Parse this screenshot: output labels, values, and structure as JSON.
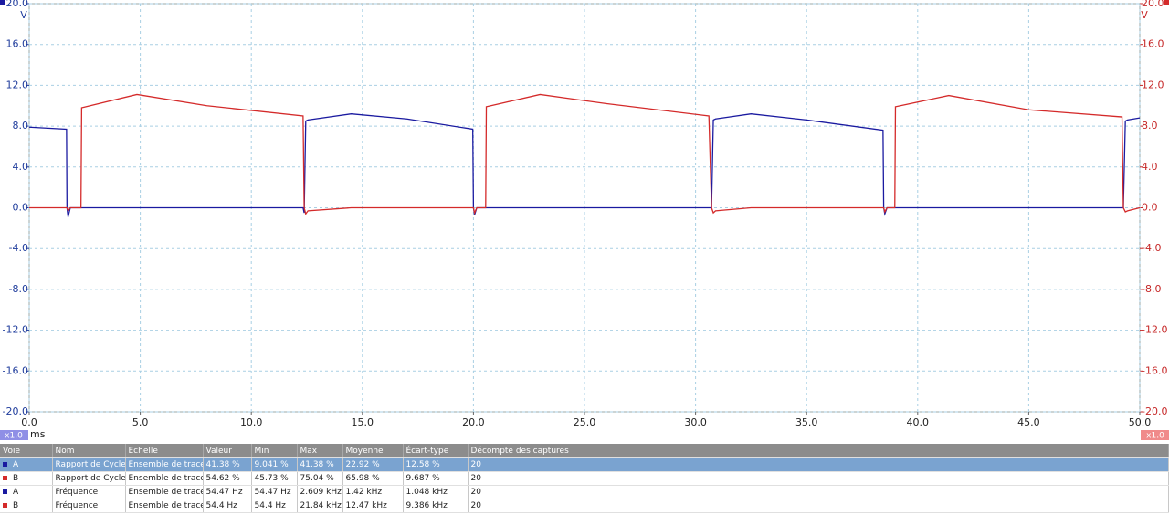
{
  "chart_data": {
    "type": "line",
    "x_label": "ms",
    "y_label": "V",
    "y2_label": "V",
    "zoom_labels": [
      "x1.0",
      "x1.0"
    ],
    "x": [
      0,
      1.68,
      1.7,
      1.75,
      1.85,
      2.33,
      2.36,
      4.85,
      8.0,
      12.33,
      12.38,
      12.45,
      12.55,
      14.5,
      17.0,
      19.97,
      20.0,
      20.05,
      20.15,
      20.55,
      20.58,
      23,
      26,
      30.6,
      30.72,
      30.8,
      30.9,
      32.5,
      35,
      38.44,
      38.47,
      38.52,
      38.62,
      38.97,
      39,
      41.4,
      45,
      49.2,
      49.26,
      49.35,
      49.45,
      50
    ],
    "series": [
      {
        "name": "A",
        "color": "#1a1aa0",
        "values": [
          7.9,
          7.7,
          0,
          -0.9,
          0,
          0,
          0,
          0,
          0,
          0,
          -0.5,
          8.5,
          8.6,
          9.2,
          8.7,
          7.7,
          0,
          -0.7,
          0,
          0,
          0,
          0,
          0,
          0,
          0,
          8.6,
          8.7,
          9.2,
          8.6,
          7.6,
          0,
          -0.6,
          0,
          0,
          0,
          0,
          0,
          0,
          0,
          8.5,
          8.6,
          8.8
        ]
      },
      {
        "name": "B",
        "color": "#d42a2a",
        "axis": "y2",
        "values": [
          0,
          0,
          0,
          -0.3,
          0,
          0,
          9.8,
          11.1,
          10.0,
          9.0,
          0,
          -0.6,
          -0.3,
          0,
          0,
          0,
          0,
          -0.5,
          0,
          0,
          9.9,
          11.1,
          10.2,
          9.0,
          0,
          -0.5,
          -0.3,
          0,
          0,
          0,
          0,
          -0.4,
          0,
          0,
          9.9,
          11.0,
          9.6,
          8.9,
          0,
          -0.4,
          -0.3,
          0
        ]
      }
    ],
    "xlim": [
      0,
      50
    ],
    "xticks": [
      {
        "value": 0,
        "label": "0.0"
      },
      {
        "value": 5,
        "label": "5.0"
      },
      {
        "value": 10,
        "label": "10.0"
      },
      {
        "value": 15,
        "label": "15.0"
      },
      {
        "value": 20,
        "label": "20.0"
      },
      {
        "value": 25,
        "label": "25.0"
      },
      {
        "value": 30,
        "label": "30.0"
      },
      {
        "value": 35,
        "label": "35.0"
      },
      {
        "value": 40,
        "label": "40.0"
      },
      {
        "value": 45,
        "label": "45.0"
      },
      {
        "value": 50,
        "label": "50.0"
      }
    ],
    "ylim": [
      -20,
      20
    ],
    "yticks": [
      {
        "value": 20,
        "label": "20.0"
      },
      {
        "value": 16,
        "label": "16.0"
      },
      {
        "value": 12,
        "label": "12.0"
      },
      {
        "value": 8,
        "label": "8.0"
      },
      {
        "value": 4,
        "label": "4.0"
      },
      {
        "value": 0,
        "label": "0.0"
      },
      {
        "value": -4,
        "label": "-4.0"
      },
      {
        "value": -8,
        "label": "-8.0"
      },
      {
        "value": -12,
        "label": "-12.0"
      },
      {
        "value": -16,
        "label": "-16.0"
      },
      {
        "value": -20,
        "label": "-20.0"
      }
    ],
    "y2lim": [
      -20,
      20
    ],
    "y2ticks": [
      {
        "value": 20,
        "label": "20.0"
      },
      {
        "value": 16,
        "label": "16.0"
      },
      {
        "value": 12,
        "label": "12.0"
      },
      {
        "value": 8,
        "label": "8.0"
      },
      {
        "value": 4,
        "label": "4.0"
      },
      {
        "value": 0,
        "label": "0.0"
      },
      {
        "value": -4,
        "label": "-4.0"
      },
      {
        "value": -8,
        "label": "-8.0"
      },
      {
        "value": -12,
        "label": "-12.0"
      },
      {
        "value": -16,
        "label": "-16.0"
      },
      {
        "value": -20,
        "label": "-20.0"
      }
    ],
    "grid": true
  },
  "table": {
    "header": [
      "Voie",
      "Nom",
      "Echelle",
      "Valeur",
      "Min",
      "Max",
      "Moyenne",
      "Écart-type",
      "Décompte des captures"
    ],
    "rows": [
      [
        "A",
        "Rapport de Cycle",
        "Ensemble de traces",
        "41.38 %",
        "9.041 %",
        "41.38 %",
        "22.92 %",
        "12.58 %",
        "20"
      ],
      [
        "B",
        "Rapport de Cycle",
        "Ensemble de traces",
        "54.62 %",
        "45.73 %",
        "75.04 %",
        "65.98 %",
        "9.687 %",
        "20"
      ],
      [
        "A",
        "Fréquence",
        "Ensemble de traces",
        "54.47 Hz",
        "54.47 Hz",
        "2.609 kHz",
        "1.42 kHz",
        "1.048 kHz",
        "20"
      ],
      [
        "B",
        "Fréquence",
        "Ensemble de traces",
        "54.4 Hz",
        "54.4 Hz",
        "21.84 kHz",
        "12.47 kHz",
        "9.386 kHz",
        "20"
      ]
    ]
  }
}
